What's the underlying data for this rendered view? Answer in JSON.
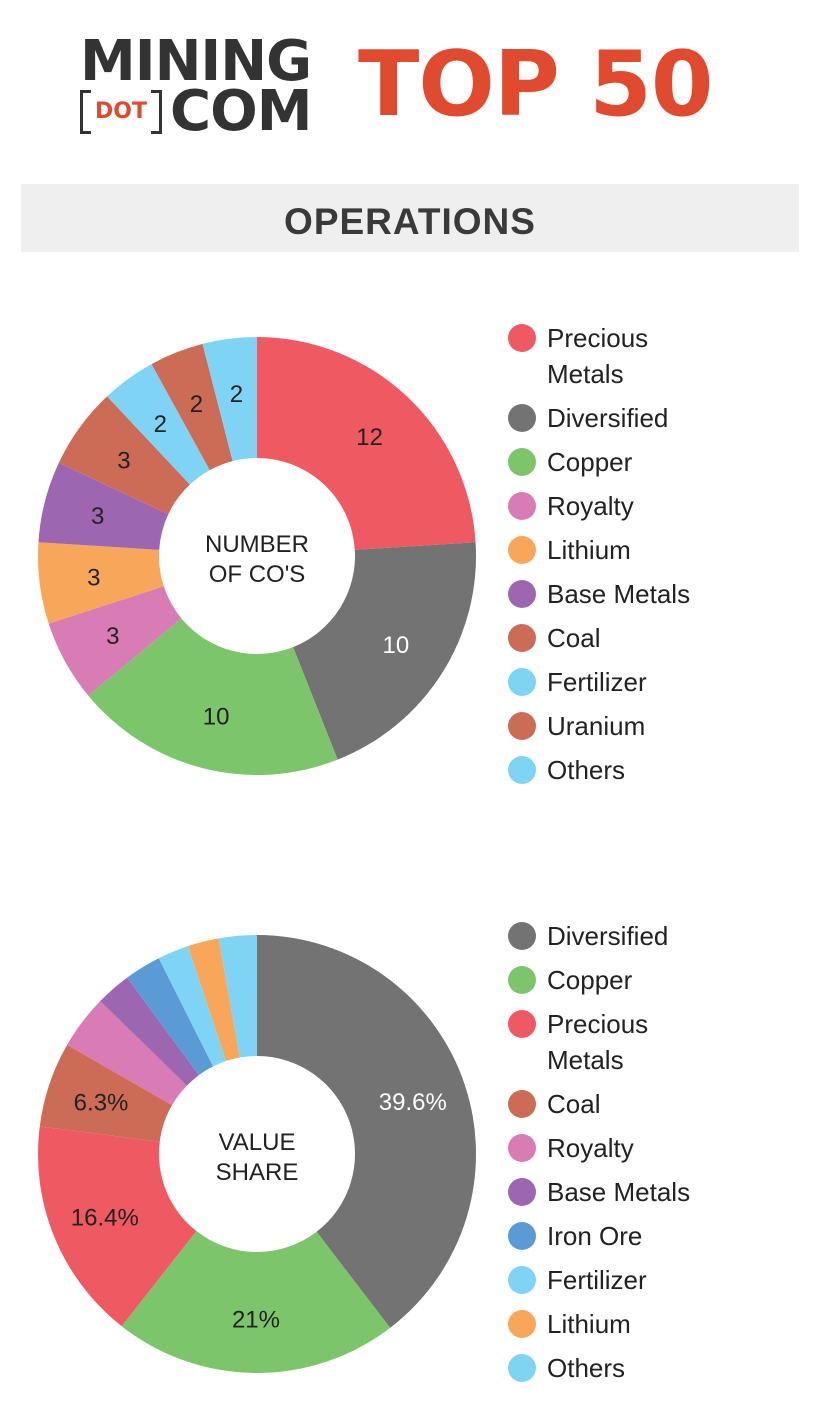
{
  "header": {
    "logo_line1": "MINING",
    "logo_dot": "DOT",
    "logo_line2": "COM",
    "title": "TOP 50",
    "brand_color": "#e04a2f"
  },
  "section": {
    "title": "OPERATIONS"
  },
  "chart_data": [
    {
      "type": "pie",
      "center_label": [
        "NUMBER",
        "OF CO'S"
      ],
      "legend_position": "right",
      "categories": [
        "Precious Metals",
        "Diversified",
        "Copper",
        "Royalty",
        "Lithium",
        "Base Metals",
        "Coal",
        "Fertilizer",
        "Uranium",
        "Others"
      ],
      "values": [
        12,
        10,
        10,
        3,
        3,
        3,
        3,
        2,
        2,
        2
      ],
      "data_labels": [
        "12",
        "10",
        "10",
        "3",
        "3",
        "3",
        "3",
        "2",
        "2",
        "2"
      ],
      "colors": [
        "#ef5a62",
        "#737373",
        "#7dc56b",
        "#d97bb4",
        "#f8a65a",
        "#9c67b0",
        "#cc6c56",
        "#7fd4f6",
        "#cc6c56",
        "#7fd4f6"
      ],
      "label_colors": [
        "#222222",
        "#ffffff",
        "#222222",
        "#222222",
        "#222222",
        "#222222",
        "#222222",
        "#222222",
        "#222222",
        "#222222"
      ]
    },
    {
      "type": "pie",
      "center_label": [
        "VALUE",
        "SHARE"
      ],
      "legend_position": "right",
      "categories": [
        "Diversified",
        "Copper",
        "Precious Metals",
        "Coal",
        "Royalty",
        "Base Metals",
        "Iron Ore",
        "Fertilizer",
        "Lithium",
        "Others"
      ],
      "values": [
        39.6,
        21,
        16.4,
        6.3,
        4,
        2.6,
        2.7,
        2.3,
        2.3,
        2.8
      ],
      "data_labels": [
        "39.6%",
        "21%",
        "16.4%",
        "6.3%",
        "",
        "",
        "",
        "",
        "",
        ""
      ],
      "colors": [
        "#737373",
        "#7dc56b",
        "#ef5a62",
        "#cc6c56",
        "#d97bb4",
        "#9c67b0",
        "#5b9bd5",
        "#7fd4f6",
        "#f8a65a",
        "#7fd4f6"
      ],
      "label_colors": [
        "#ffffff",
        "#222222",
        "#222222",
        "#222222",
        "#222222",
        "#222222",
        "#222222",
        "#222222",
        "#222222",
        "#222222"
      ]
    }
  ]
}
